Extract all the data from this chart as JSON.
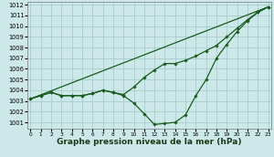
{
  "background_color": "#cce8e8",
  "grid_color": "#aacccc",
  "line_color": "#1a5c20",
  "xlabel": "Graphe pression niveau de la mer (hPa)",
  "xlabel_fontsize": 6.5,
  "ylim": [
    1000.4,
    1012.3
  ],
  "xlim": [
    -0.3,
    23.3
  ],
  "yticks": [
    1001,
    1002,
    1003,
    1004,
    1005,
    1006,
    1007,
    1008,
    1009,
    1010,
    1011,
    1012
  ],
  "xticks": [
    0,
    1,
    2,
    3,
    4,
    5,
    6,
    7,
    8,
    9,
    10,
    11,
    12,
    13,
    14,
    15,
    16,
    17,
    18,
    19,
    20,
    21,
    22,
    23
  ],
  "series_dip": {
    "x": [
      0,
      1,
      2,
      3,
      4,
      5,
      6,
      7,
      8,
      9,
      10,
      11,
      12,
      13,
      14,
      15,
      16,
      17,
      18,
      19,
      20,
      21,
      22,
      23
    ],
    "y": [
      1003.2,
      1003.5,
      1003.8,
      1003.5,
      1003.5,
      1003.5,
      1003.7,
      1004.0,
      1003.8,
      1003.5,
      1002.8,
      1001.8,
      1000.8,
      1000.9,
      1001.0,
      1001.7,
      1003.5,
      1005.0,
      1007.0,
      1008.3,
      1009.5,
      1010.5,
      1011.3,
      1011.8
    ]
  },
  "series_curve": {
    "x": [
      0,
      1,
      2,
      3,
      4,
      5,
      6,
      7,
      8,
      9,
      10,
      11,
      12,
      13,
      14,
      15,
      16,
      17,
      18,
      19,
      20,
      21,
      22,
      23
    ],
    "y": [
      1003.2,
      1003.5,
      1003.8,
      1003.5,
      1003.5,
      1003.5,
      1003.7,
      1004.0,
      1003.8,
      1003.6,
      1004.3,
      1005.2,
      1005.9,
      1006.5,
      1006.5,
      1006.8,
      1007.2,
      1007.7,
      1008.2,
      1009.0,
      1009.8,
      1010.6,
      1011.3,
      1011.8
    ]
  },
  "series_line": {
    "x": [
      0,
      23
    ],
    "y": [
      1003.2,
      1011.8
    ]
  }
}
